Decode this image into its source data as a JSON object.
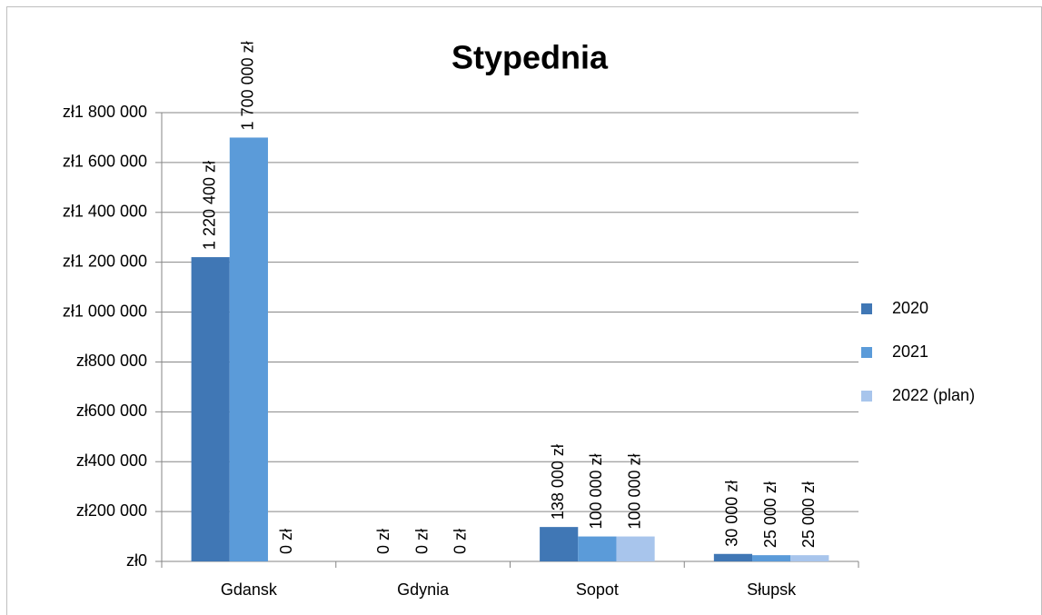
{
  "chart_data": {
    "type": "bar",
    "title": "Stypednia",
    "categories": [
      "Gdansk",
      "Gdynia",
      "Sopot",
      "Słupsk"
    ],
    "series": [
      {
        "name": "2020",
        "color": "#4077b5",
        "values": [
          1220400,
          0,
          138000,
          30000
        ],
        "value_labels": [
          "1 220 400 zł",
          "0 zł",
          "138 000 zł",
          "30 000 zł"
        ]
      },
      {
        "name": "2021",
        "color": "#5b9bd9",
        "values": [
          1700000,
          0,
          100000,
          25000
        ],
        "value_labels": [
          "1 700 000 zł",
          "0 zł",
          "100 000 zł",
          "25 000 zł"
        ]
      },
      {
        "name": "2022 (plan)",
        "color": "#a8c5ec",
        "values": [
          0,
          0,
          100000,
          25000
        ],
        "value_labels": [
          "0 zł",
          "0 zł",
          "100 000 zł",
          "25 000 zł"
        ]
      }
    ],
    "ylim": [
      0,
      1800000
    ],
    "yticks": [
      {
        "value": 0,
        "label": "zł0"
      },
      {
        "value": 200000,
        "label": "zł200 000"
      },
      {
        "value": 400000,
        "label": "zł400 000"
      },
      {
        "value": 600000,
        "label": "zł600 000"
      },
      {
        "value": 800000,
        "label": "zł800 000"
      },
      {
        "value": 1000000,
        "label": "zł1 000 000"
      },
      {
        "value": 1200000,
        "label": "zł1 200 000"
      },
      {
        "value": 1400000,
        "label": "zł1 400 000"
      },
      {
        "value": 1600000,
        "label": "zł1 600 000"
      },
      {
        "value": 1800000,
        "label": "zł1 800 000"
      }
    ],
    "grid": true,
    "legend": "right"
  }
}
